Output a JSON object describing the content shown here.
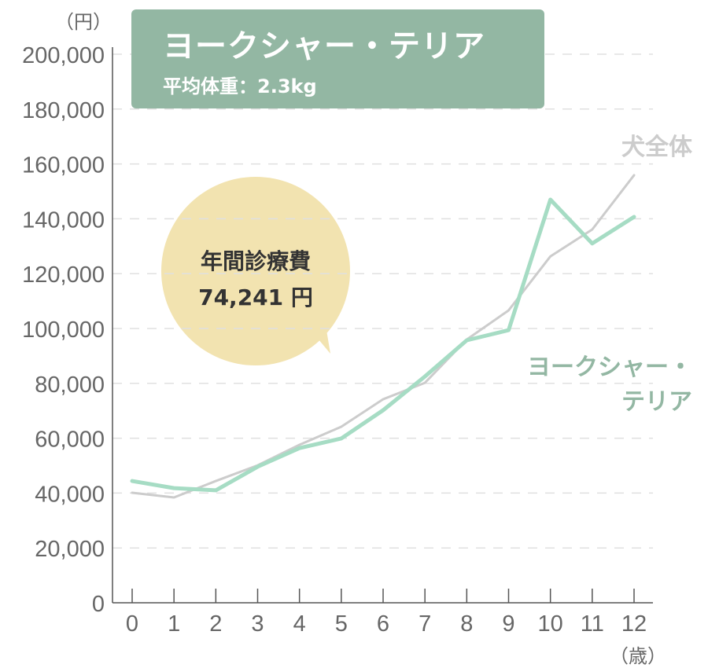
{
  "header": {
    "title": "ヨークシャー・テリア",
    "subtitle": "平均体重：2.3kg"
  },
  "callout": {
    "label": "年間診療費",
    "value": "74,241 円"
  },
  "chart_data": {
    "type": "line",
    "title": "ヨークシャー・テリア",
    "xlabel": "（歳）",
    "ylabel": "（円）",
    "x": [
      0,
      1,
      2,
      3,
      4,
      5,
      6,
      7,
      8,
      9,
      10,
      11,
      12
    ],
    "xticks": [
      "0",
      "1",
      "2",
      "3",
      "4",
      "5",
      "6",
      "7",
      "8",
      "9",
      "10",
      "11",
      "12"
    ],
    "ylim": [
      0,
      200000
    ],
    "yticks": [
      0,
      20000,
      40000,
      60000,
      80000,
      100000,
      120000,
      140000,
      160000,
      180000,
      200000
    ],
    "ytick_labels": [
      "0",
      "20,000",
      "40,000",
      "60,000",
      "80,000",
      "100,000",
      "120,000",
      "140,000",
      "160,000",
      "180,000",
      "200,000"
    ],
    "grid": true,
    "series": [
      {
        "name": "犬全体",
        "label_lines": [
          "犬全体"
        ],
        "color": "#cccccc",
        "values": [
          40100,
          38400,
          44400,
          50100,
          57600,
          64200,
          74200,
          80200,
          96000,
          106600,
          126300,
          136100,
          155900
        ]
      },
      {
        "name": "ヨークシャー・テリア",
        "label_lines": [
          "ヨークシャー・",
          "テリア"
        ],
        "color": "#a6dcc4",
        "values": [
          44400,
          41800,
          41000,
          49600,
          56400,
          59900,
          70200,
          82500,
          95700,
          99400,
          147000,
          131000,
          140700
        ]
      }
    ]
  },
  "colors": {
    "title_bg": "#93b7a3",
    "bubble": "#f2e3b0",
    "series_label_green": "#93b7a3",
    "series_label_gray": "#cccccc"
  }
}
